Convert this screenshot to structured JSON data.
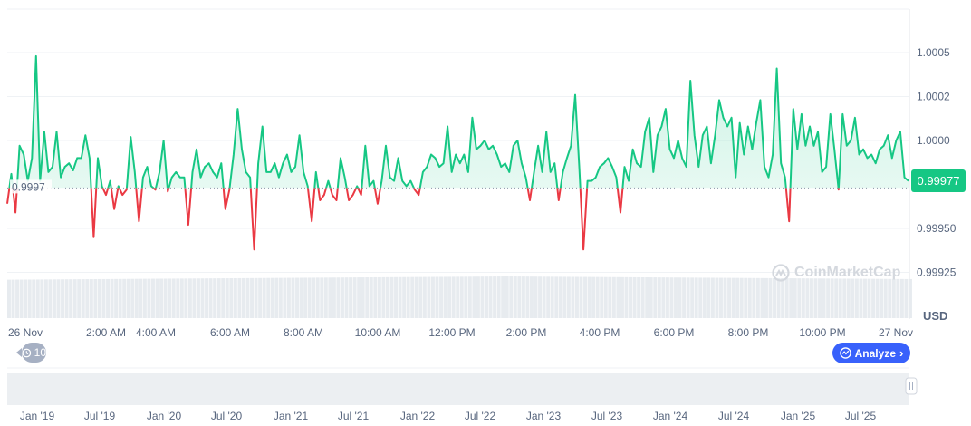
{
  "chart_data": {
    "type": "line",
    "title": "",
    "currency": "USD",
    "current_price_label": "0.99977",
    "baseline_label": "0.9997",
    "baseline_value": 0.99973,
    "ylim": [
      0.999,
      1.0006
    ],
    "y_ticks": [
      {
        "value": 1.0005,
        "label": "1.0005"
      },
      {
        "value": 1.00025,
        "label": "1.0002"
      },
      {
        "value": 1.0,
        "label": "1.0000"
      },
      {
        "value": 0.9995,
        "label": "0.99950"
      },
      {
        "value": 0.99925,
        "label": "0.99925"
      }
    ],
    "x_ticks": [
      "26 Nov",
      "2:00 AM",
      "4:00 AM",
      "6:00 AM",
      "8:00 AM",
      "10:00 AM",
      "12:00 PM",
      "2:00 PM",
      "4:00 PM",
      "6:00 PM",
      "8:00 PM",
      "10:00 PM",
      "27 Nov"
    ],
    "navigator_ticks": [
      "Jan '19",
      "Jul '19",
      "Jan '20",
      "Jul '20",
      "Jan '21",
      "Jul '21",
      "Jan '22",
      "Jul '22",
      "Jan '23",
      "Jul '23",
      "Jan '24",
      "Jul '24",
      "Jan '25",
      "Jul '25"
    ],
    "colors": {
      "up": "#16c784",
      "down": "#ea3943",
      "volume": "#e7ebef",
      "navigator": "#eceff2"
    },
    "grid": true,
    "values": [
      0.99964,
      0.99981,
      0.99959,
      0.99997,
      0.99992,
      0.99977,
      0.9999,
      1.00048,
      0.99977,
      1.00005,
      0.99982,
      0.99985,
      1.00005,
      0.99979,
      0.99985,
      0.99987,
      0.99983,
      0.9999,
      0.9999,
      1.00003,
      0.9999,
      0.99945,
      0.9999,
      0.99974,
      0.99969,
      0.99977,
      0.99961,
      0.99974,
      0.99969,
      0.99972,
      1.00002,
      0.99982,
      0.99954,
      0.99979,
      0.99985,
      0.99974,
      0.99972,
      0.99982,
      1.0,
      0.99971,
      0.99979,
      0.99982,
      0.99979,
      0.99979,
      0.99952,
      0.99982,
      0.99995,
      0.99979,
      0.99985,
      0.99987,
      0.99982,
      0.99979,
      0.99987,
      0.99961,
      0.99972,
      0.99992,
      1.00018,
      0.99995,
      0.99982,
      0.99979,
      0.99938,
      0.99987,
      1.00008,
      0.99982,
      0.99982,
      0.99987,
      0.99979,
      0.99987,
      0.99992,
      0.99982,
      0.99985,
      1.00003,
      0.99982,
      0.99974,
      0.99954,
      0.99982,
      0.99966,
      0.99969,
      0.99977,
      0.99969,
      0.99966,
      0.9999,
      0.99979,
      0.99966,
      0.99969,
      0.99974,
      0.99969,
      0.99997,
      0.99974,
      0.99977,
      0.99964,
      0.99977,
      0.99997,
      0.99979,
      0.99977,
      0.9999,
      0.99977,
      0.99974,
      0.99977,
      0.99972,
      0.99969,
      0.99982,
      0.99985,
      0.99992,
      0.9999,
      0.99985,
      0.99987,
      1.00008,
      0.99982,
      0.99992,
      0.99987,
      0.99992,
      0.99982,
      1.00013,
      0.99995,
      0.99997,
      1.0,
      0.99995,
      0.99997,
      0.99992,
      0.99985,
      0.99987,
      0.99982,
      0.99997,
      1.0,
      0.99987,
      0.99979,
      0.99966,
      0.99982,
      0.99997,
      0.99982,
      1.00005,
      0.99982,
      0.99987,
      0.99966,
      0.99982,
      0.9999,
      0.99997,
      1.00026,
      0.99985,
      0.99938,
      0.99977,
      0.99977,
      0.99979,
      0.99985,
      0.99987,
      0.9999,
      0.99985,
      0.99979,
      0.99959,
      0.99985,
      0.99977,
      0.99995,
      0.99987,
      0.99985,
      1.00005,
      1.00013,
      0.99982,
      1.00003,
      1.00008,
      1.00018,
      0.99995,
      0.9999,
      1.0,
      0.9999,
      0.99985,
      1.00034,
      1.00003,
      0.99985,
      1.00003,
      1.00008,
      0.99987,
      1.00003,
      1.00023,
      1.00013,
      1.00008,
      1.00013,
      0.99979,
      1.0001,
      0.99992,
      1.00008,
      0.99995,
      1.0001,
      1.00023,
      0.99985,
      0.99979,
      0.99992,
      1.00041,
      0.99987,
      0.99979,
      0.99954,
      1.00018,
      0.99995,
      1.00015,
      0.99997,
      1.00008,
      0.99997,
      1.00005,
      0.99982,
      0.99985,
      1.00015,
      0.99995,
      0.99972,
      1.00015,
      0.99997,
      1.0,
      1.00013,
      0.99992,
      0.99995,
      0.9999,
      0.99992,
      0.99987,
      0.99995,
      0.99997,
      1.00003,
      0.9999,
      1.0,
      1.00005,
      0.99979,
      0.99977
    ]
  },
  "buttons": {
    "history_label": "10",
    "analyze_label": "Analyze"
  },
  "watermark": "CoinMarketCap"
}
